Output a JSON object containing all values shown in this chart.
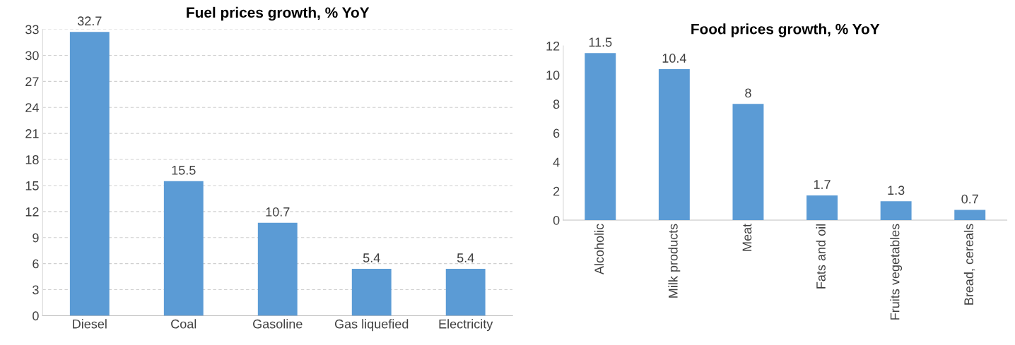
{
  "chart_data": [
    {
      "type": "bar",
      "title": "Fuel prices growth, % YoY",
      "categories": [
        "Diesel",
        "Coal",
        "Gasoline",
        "Gas liquefied",
        "Electricity"
      ],
      "values": [
        32.7,
        15.5,
        10.7,
        5.4,
        5.4
      ],
      "color": "#5b9bd5",
      "ylim": [
        0,
        33
      ],
      "yticks": [
        0,
        3,
        6,
        9,
        12,
        15,
        18,
        21,
        24,
        27,
        30,
        33
      ],
      "grid": "y",
      "data_labels": true
    },
    {
      "type": "bar",
      "title": "Food prices growth, % YoY",
      "categories": [
        "Alcoholic",
        "Milk products",
        "Meat",
        "Fats and oil",
        "Fruits vegetables",
        "Bread, cereals"
      ],
      "values": [
        11.5,
        10.4,
        8,
        1.7,
        1.3,
        0.7
      ],
      "color": "#5b9bd5",
      "ylim": [
        0,
        12
      ],
      "yticks": [
        0,
        2,
        4,
        6,
        8,
        10,
        12
      ],
      "grid": false,
      "data_labels": true
    }
  ]
}
